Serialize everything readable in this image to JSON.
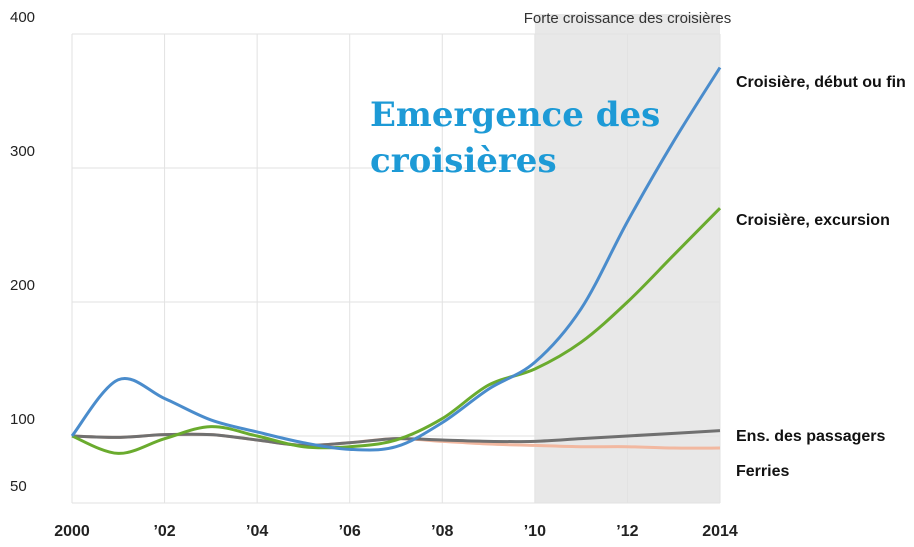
{
  "chart_data": {
    "type": "line",
    "annotation": "Emergence des croisières",
    "shade": {
      "from": 2010,
      "to": 2014,
      "label": "Forte croissance des croisières"
    },
    "x": [
      2000,
      2001,
      2002,
      2003,
      2004,
      2005,
      2006,
      2007,
      2008,
      2009,
      2010,
      2011,
      2012,
      2013,
      2014
    ],
    "series": [
      {
        "name": "Croisière, début ou fin",
        "color": "#4a8ccc",
        "values": [
          100,
          142,
          128,
          112,
          103,
          95,
          90,
          92,
          110,
          135,
          155,
          195,
          260,
          320,
          375
        ]
      },
      {
        "name": "Croisière, excursion",
        "color": "#6aab2e",
        "values": [
          100,
          87,
          98,
          107,
          100,
          92,
          92,
          97,
          113,
          138,
          150,
          170,
          200,
          235,
          270
        ]
      },
      {
        "name": "Ens. des passagers",
        "color": "#707070",
        "values": [
          100,
          99,
          101,
          101,
          97,
          93,
          95,
          98,
          97,
          96,
          96,
          98,
          100,
          102,
          104
        ]
      },
      {
        "name": "Ferries",
        "color": "#f2b8a0",
        "values": [
          100,
          99,
          101,
          101,
          97,
          93,
          95,
          98,
          96,
          94,
          93,
          92,
          92,
          91,
          91
        ]
      }
    ],
    "xlim": [
      2000,
      2014
    ],
    "xticks": [
      2000,
      {
        "value": 2002,
        "label": "’02"
      },
      {
        "value": 2004,
        "label": "’04"
      },
      {
        "value": 2006,
        "label": "’06"
      },
      {
        "value": 2008,
        "label": "’08"
      },
      {
        "value": 2010,
        "label": "’10"
      },
      {
        "value": 2012,
        "label": "’12"
      },
      2014
    ],
    "ylim": [
      50,
      400
    ],
    "yticks": [
      50,
      100,
      200,
      300,
      400
    ],
    "grid": true
  }
}
